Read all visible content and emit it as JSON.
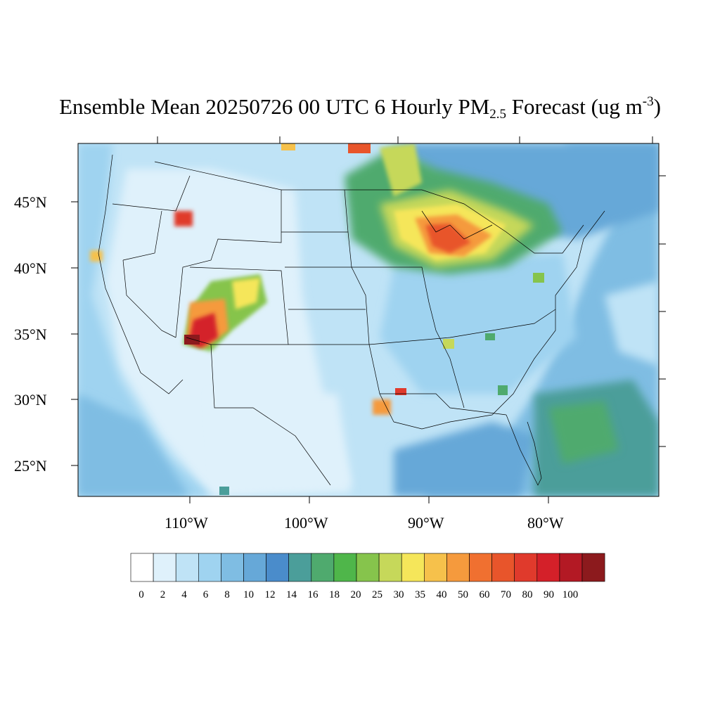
{
  "title": {
    "main": "Ensemble Mean 20250726 00 UTC 6 Hourly PM",
    "sub": "2.5",
    "after": " Forecast (ug m",
    "sup": "-3",
    "close": ")"
  },
  "axes": {
    "lat_labels": [
      "45°N",
      "40°N",
      "35°N",
      "30°N",
      "25°N"
    ],
    "lon_labels": [
      "110°W",
      "100°W",
      "90°W",
      "80°W"
    ]
  },
  "colorbar": {
    "levels": [
      "0",
      "2",
      "4",
      "6",
      "8",
      "10",
      "12",
      "14",
      "16",
      "18",
      "20",
      "25",
      "30",
      "35",
      "40",
      "50",
      "60",
      "70",
      "80",
      "90",
      "100"
    ],
    "colors": [
      "#ffffff",
      "#dff1fb",
      "#bfe3f6",
      "#9fd3f0",
      "#7fbde3",
      "#66a8d8",
      "#4a8ccb",
      "#4b9e9a",
      "#4faa6e",
      "#4fb64a",
      "#86c44c",
      "#c6d85a",
      "#f5e65a",
      "#f6c14b",
      "#f59a3d",
      "#f07030",
      "#e8552b",
      "#e03a2c",
      "#d42029",
      "#b31924",
      "#8c1a1d"
    ]
  },
  "colors": {
    "background": "#bfe3f6",
    "ocean": "#7fbde3",
    "outline": "#000000"
  }
}
